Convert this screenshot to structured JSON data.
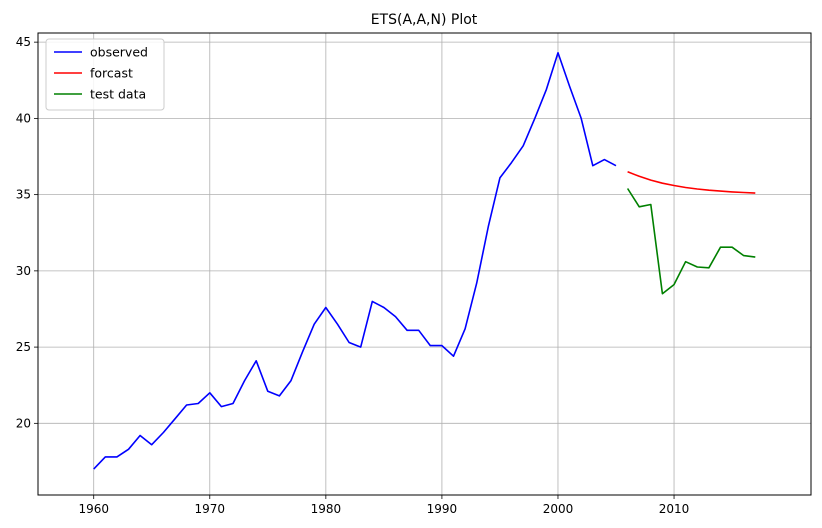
{
  "chart_data": {
    "type": "line",
    "title": "ETS(A,A,N) Plot",
    "xlabel": "",
    "ylabel": "",
    "xlim": [
      1955.2,
      2021.8
    ],
    "ylim": [
      15.3,
      45.6
    ],
    "xticks": [
      1960,
      1970,
      1980,
      1990,
      2000,
      2010
    ],
    "yticks": [
      20,
      25,
      30,
      35,
      40,
      45
    ],
    "grid": true,
    "legend_position": "top-left",
    "series": [
      {
        "name": "observed",
        "color": "#0000ff",
        "x": [
          1960,
          1961,
          1962,
          1963,
          1964,
          1965,
          1966,
          1967,
          1968,
          1969,
          1970,
          1971,
          1972,
          1973,
          1974,
          1975,
          1976,
          1977,
          1978,
          1979,
          1980,
          1981,
          1982,
          1983,
          1984,
          1985,
          1986,
          1987,
          1988,
          1989,
          1990,
          1991,
          1992,
          1993,
          1994,
          1995,
          1996,
          1997,
          1998,
          1999,
          2000,
          2001,
          2002,
          2003,
          2004,
          2005
        ],
        "y": [
          17.0,
          17.8,
          17.8,
          18.3,
          19.2,
          18.6,
          19.4,
          20.3,
          21.2,
          21.3,
          22.0,
          21.1,
          21.3,
          22.8,
          24.1,
          22.1,
          21.8,
          22.8,
          24.7,
          26.5,
          27.6,
          26.5,
          25.3,
          25.0,
          28.0,
          27.6,
          27.0,
          26.1,
          26.1,
          25.1,
          25.1,
          24.4,
          26.2,
          29.2,
          32.9,
          36.1,
          37.1,
          38.2,
          40.0,
          41.9,
          44.3,
          42.1,
          40.0,
          36.9,
          37.3,
          36.9
        ]
      },
      {
        "name": "forcast",
        "color": "#ff0000",
        "x": [
          2006,
          2007,
          2008,
          2009,
          2010,
          2011,
          2012,
          2013,
          2014,
          2015,
          2016,
          2017
        ],
        "y": [
          36.5,
          36.2,
          35.95,
          35.75,
          35.6,
          35.47,
          35.37,
          35.29,
          35.23,
          35.18,
          35.14,
          35.1
        ]
      },
      {
        "name": "test data",
        "color": "#008000",
        "x": [
          2006,
          2007,
          2008,
          2009,
          2010,
          2011,
          2012,
          2013,
          2014,
          2015,
          2016,
          2017
        ],
        "y": [
          35.4,
          34.2,
          34.35,
          28.5,
          29.1,
          30.6,
          30.25,
          30.2,
          31.55,
          31.55,
          31.0,
          30.9
        ]
      }
    ]
  }
}
